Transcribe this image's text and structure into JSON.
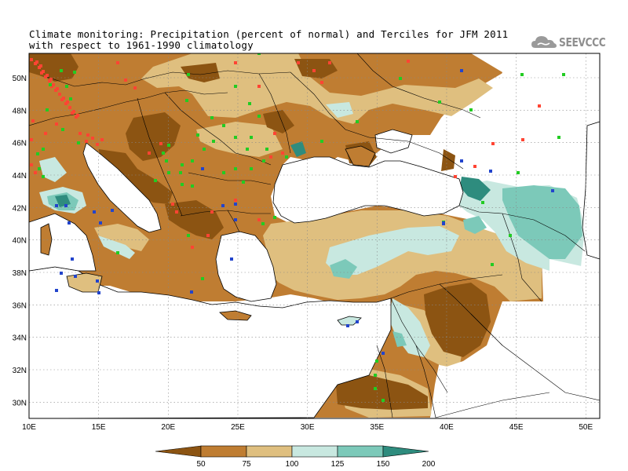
{
  "title": {
    "line1": "Climate monitoring: Precipitation (percent of normal) and Terciles for JFM 2011",
    "line2": "with respect to 1961-1990 climatology"
  },
  "logo": {
    "text": "SEEVCCC",
    "icon": "cloud-icon"
  },
  "map": {
    "lon_labels": [
      "10E",
      "15E",
      "20E",
      "25E",
      "30E",
      "35E",
      "40E",
      "45E",
      "50E"
    ],
    "lat_labels": [
      "30N",
      "32N",
      "34N",
      "36N",
      "38N",
      "40N",
      "42N",
      "44N",
      "46N",
      "48N",
      "50N"
    ],
    "lon_range": [
      10,
      51
    ],
    "lat_range": [
      29,
      51.5
    ]
  },
  "colorbar": {
    "labels": [
      "50",
      "75",
      "100",
      "125",
      "150",
      "200"
    ],
    "colors": [
      "#8c5412",
      "#bf7d32",
      "#dfbf7f",
      "#c8e8e0",
      "#7cc9b9",
      "#2e8c7e"
    ]
  },
  "colors": {
    "dry_tercile": "#ff4433",
    "normal_tercile": "#22cc22",
    "wet_tercile": "#2244cc",
    "land_outline": "#000000"
  }
}
